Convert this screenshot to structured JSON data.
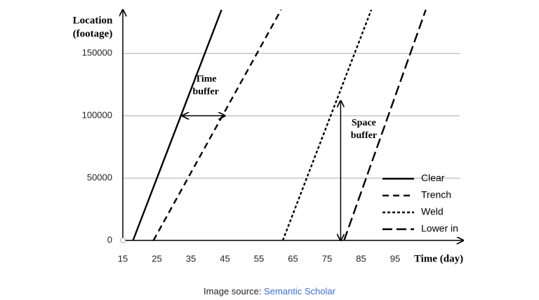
{
  "chart_data": {
    "type": "line",
    "y_label": [
      "Location",
      "(footage)"
    ],
    "x_label": "Time (day)",
    "xlim": [
      15,
      115
    ],
    "ylim": [
      0,
      185000
    ],
    "xticks": [
      15,
      25,
      35,
      45,
      55,
      65,
      75,
      85,
      95
    ],
    "yticks": [
      0,
      50000,
      100000,
      150000
    ],
    "grid": true,
    "legend": "lower right",
    "series": [
      {
        "name": "Clear",
        "color": "#000000",
        "dash": "solid",
        "x": [
          18,
          44
        ],
        "values": [
          0,
          185000
        ]
      },
      {
        "name": "Trench",
        "color": "#000000",
        "dash": "dashed",
        "x": [
          24,
          61.5
        ],
        "values": [
          0,
          185000
        ]
      },
      {
        "name": "Weld",
        "color": "#000000",
        "dash": "dotted",
        "x": [
          62,
          88
        ],
        "values": [
          0,
          185000
        ]
      },
      {
        "name": "Lower in",
        "color": "#000000",
        "dash": "longdash",
        "x": [
          80,
          104
        ],
        "values": [
          0,
          185000
        ]
      }
    ],
    "annotations": [
      {
        "text": [
          "Time",
          "buffer"
        ],
        "from": [
          32.5,
          100000
        ],
        "to": [
          45,
          100000
        ]
      },
      {
        "text": [
          "Space",
          "buffer"
        ],
        "from": [
          79,
          0
        ],
        "to": [
          79,
          112000
        ]
      }
    ]
  },
  "source": {
    "text": "Image source:",
    "link": "Semantic Scholar"
  }
}
